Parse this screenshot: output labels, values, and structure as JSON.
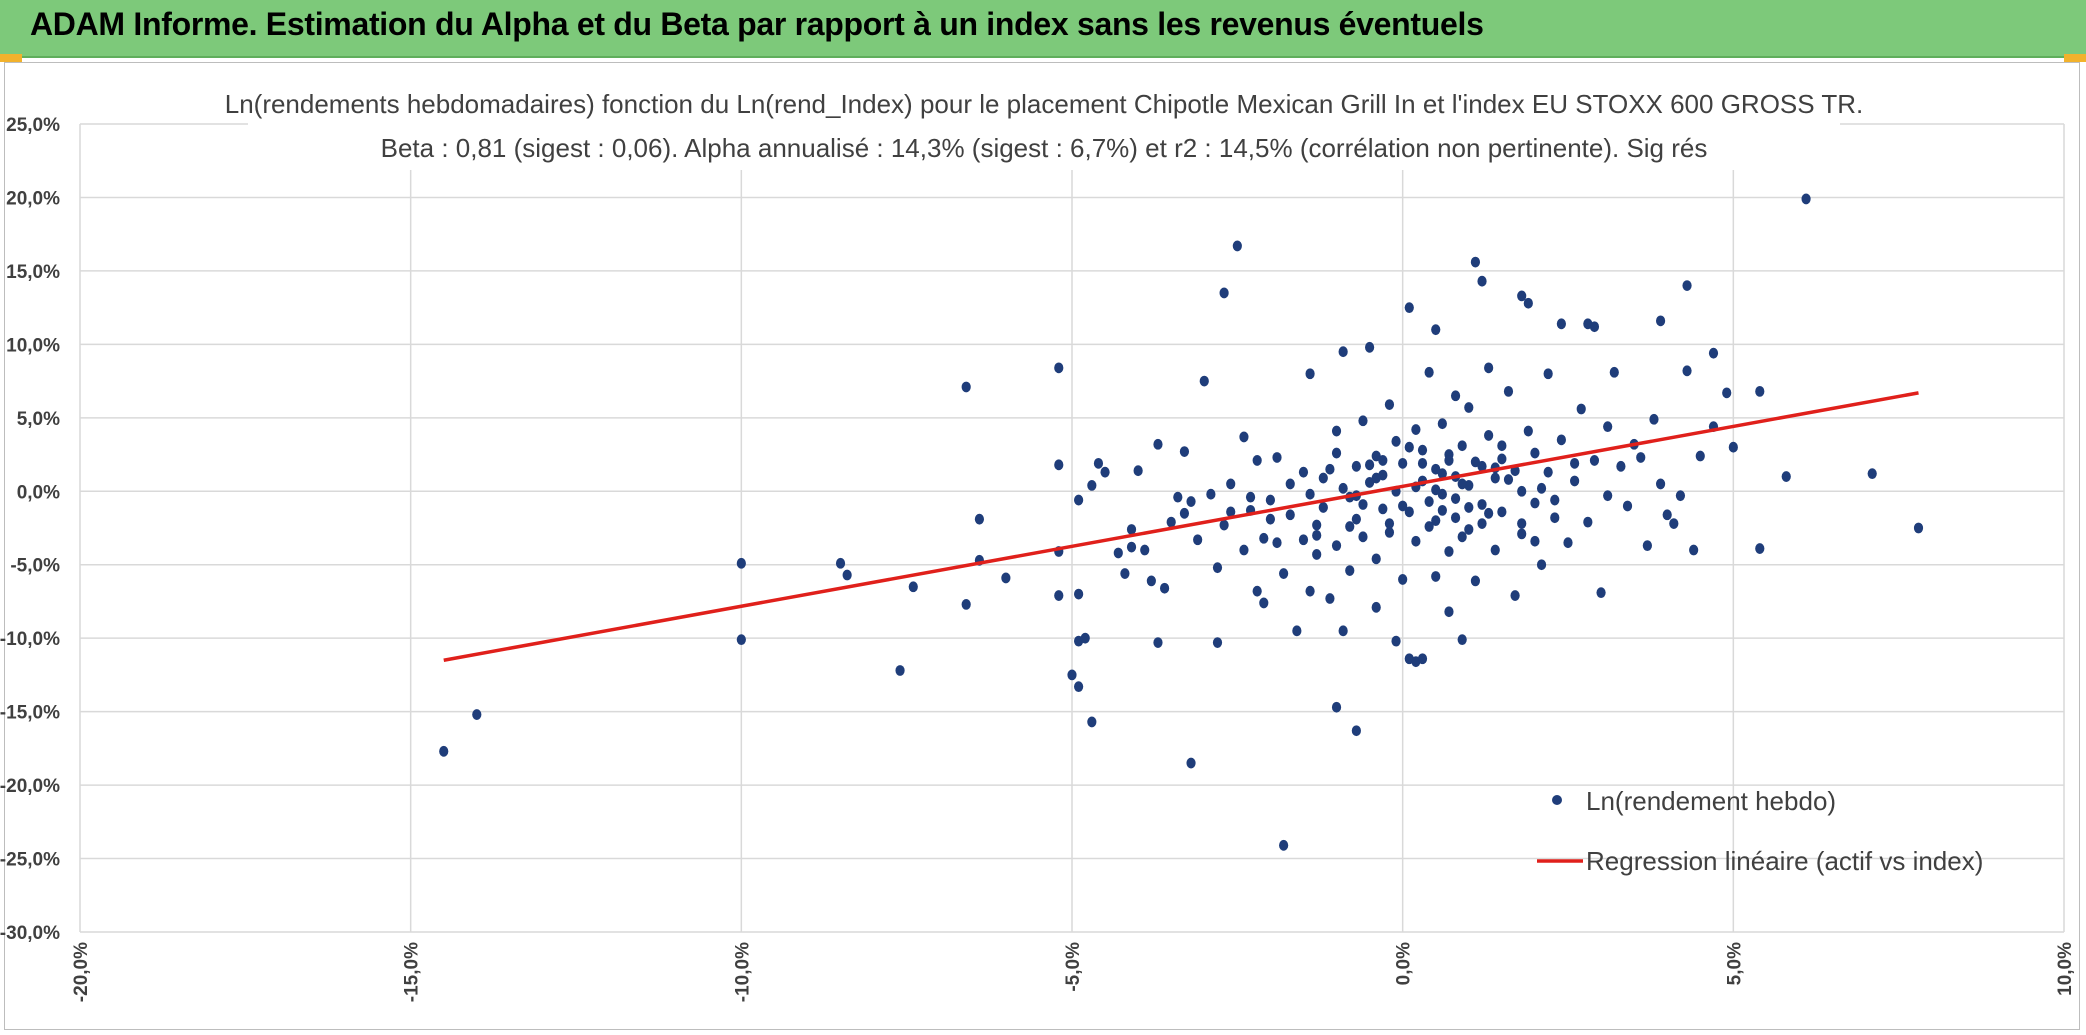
{
  "header": {
    "title": "ADAM Informe. Estimation du Alpha et du Beta par rapport à un index sans les revenus éventuels",
    "background": "#7dc97a"
  },
  "chart_data": {
    "type": "scatter",
    "title": "Ln(rendements hebdomadaires) fonction du Ln(rend_Index) pour le placement Chipotle Mexican Grill In et l'index EU STOXX 600 GROSS TR.",
    "subtitle": "Beta : 0,81 (sigest : 0,06). Alpha annualisé : 14,3% (sigest : 6,7%) et r2 : 14,5% (corrélation non pertinente). Sig rés",
    "xlim": [
      -20,
      10
    ],
    "ylim": [
      -30,
      25
    ],
    "x_ticks": [
      -20,
      -15,
      -10,
      -5,
      0,
      5,
      10
    ],
    "y_ticks": [
      25,
      20,
      15,
      10,
      5,
      0,
      -5,
      -10,
      -15,
      -20,
      -25,
      -30
    ],
    "x_tick_labels": [
      "-20,0%",
      "-15,0%",
      "-10,0%",
      "-5,0%",
      "0,0%",
      "5,0%",
      "10,0%"
    ],
    "y_tick_labels": [
      "25,0%",
      "20,0%",
      "15,0%",
      "10,0%",
      "5,0%",
      "0,0%",
      "-5,0%",
      "-10,0%",
      "-15,0%",
      "-20,0%",
      "-25,0%",
      "-30,0%"
    ],
    "grid": true,
    "legend_position": "bottom-right",
    "colors": {
      "points": "#1f3d7a",
      "regression": "#e0201b",
      "grid": "#d9d9d9"
    },
    "series": [
      {
        "name": "Ln(rendement hebdo)",
        "type": "scatter",
        "points": [
          [
            -14.5,
            -17.7
          ],
          [
            -14.0,
            -15.2
          ],
          [
            -10.0,
            -4.9
          ],
          [
            -10.0,
            -10.1
          ],
          [
            -8.5,
            -4.9
          ],
          [
            -8.4,
            -5.7
          ],
          [
            -7.6,
            -12.2
          ],
          [
            -7.4,
            -6.5
          ],
          [
            -6.6,
            7.1
          ],
          [
            -6.6,
            -7.7
          ],
          [
            -6.4,
            -1.9
          ],
          [
            -6.4,
            -4.7
          ],
          [
            -6.0,
            -5.9
          ],
          [
            -5.2,
            8.4
          ],
          [
            -5.2,
            -4.1
          ],
          [
            -5.2,
            1.8
          ],
          [
            -5.2,
            -7.1
          ],
          [
            -4.9,
            -7.0
          ],
          [
            -4.9,
            -10.2
          ],
          [
            -4.9,
            -0.6
          ],
          [
            -4.8,
            -10.0
          ],
          [
            -5.0,
            -12.5
          ],
          [
            -4.9,
            -13.3
          ],
          [
            -4.7,
            -15.7
          ],
          [
            -4.7,
            0.4
          ],
          [
            -4.6,
            1.9
          ],
          [
            -4.5,
            1.3
          ],
          [
            -4.3,
            -4.2
          ],
          [
            -4.2,
            -5.6
          ],
          [
            -4.1,
            -2.6
          ],
          [
            -4.1,
            -3.8
          ],
          [
            -4.0,
            1.4
          ],
          [
            -3.9,
            -4.0
          ],
          [
            -3.8,
            -6.1
          ],
          [
            -3.7,
            -10.3
          ],
          [
            -3.7,
            3.2
          ],
          [
            -3.6,
            -6.6
          ],
          [
            -3.5,
            -2.1
          ],
          [
            -3.4,
            -0.4
          ],
          [
            -3.3,
            2.7
          ],
          [
            -3.3,
            -1.5
          ],
          [
            -3.2,
            -0.7
          ],
          [
            -3.1,
            -3.3
          ],
          [
            -3.2,
            -18.5
          ],
          [
            -3.0,
            7.5
          ],
          [
            -2.9,
            -0.2
          ],
          [
            -2.8,
            -10.3
          ],
          [
            -2.8,
            -5.2
          ],
          [
            -2.7,
            -2.3
          ],
          [
            -2.6,
            0.5
          ],
          [
            -2.7,
            13.5
          ],
          [
            -2.5,
            16.7
          ],
          [
            -2.4,
            3.7
          ],
          [
            -2.4,
            -4.0
          ],
          [
            -2.3,
            -1.3
          ],
          [
            -2.2,
            2.1
          ],
          [
            -2.2,
            -6.8
          ],
          [
            -2.1,
            -3.2
          ],
          [
            -2.1,
            -7.6
          ],
          [
            -2.0,
            -0.6
          ],
          [
            -1.9,
            -3.5
          ],
          [
            -1.9,
            2.3
          ],
          [
            -1.8,
            -24.1
          ],
          [
            -1.8,
            -5.6
          ],
          [
            -1.7,
            -1.6
          ],
          [
            -1.6,
            -9.5
          ],
          [
            -1.5,
            -3.3
          ],
          [
            -1.5,
            1.3
          ],
          [
            -1.4,
            8.0
          ],
          [
            -1.4,
            -6.8
          ],
          [
            -1.3,
            -2.3
          ],
          [
            -1.3,
            -4.3
          ],
          [
            -1.2,
            0.9
          ],
          [
            -1.2,
            -1.1
          ],
          [
            -1.1,
            -7.3
          ],
          [
            -1.0,
            4.1
          ],
          [
            -1.0,
            -3.7
          ],
          [
            -1.0,
            -14.7
          ],
          [
            -0.9,
            -9.5
          ],
          [
            -0.9,
            9.5
          ],
          [
            -0.8,
            -0.4
          ],
          [
            -0.8,
            -5.4
          ],
          [
            -0.7,
            -16.3
          ],
          [
            -0.7,
            1.7
          ],
          [
            -0.7,
            -1.9
          ],
          [
            -0.6,
            4.8
          ],
          [
            -0.6,
            -3.1
          ],
          [
            -0.5,
            9.8
          ],
          [
            -0.5,
            0.6
          ],
          [
            -0.4,
            -7.9
          ],
          [
            -0.4,
            2.4
          ],
          [
            -0.4,
            -4.6
          ],
          [
            -0.3,
            -1.2
          ],
          [
            -0.3,
            1.1
          ],
          [
            -0.2,
            5.9
          ],
          [
            -0.2,
            -2.8
          ],
          [
            -0.1,
            -10.2
          ],
          [
            -0.1,
            0.0
          ],
          [
            -0.1,
            3.4
          ],
          [
            0.0,
            -6.0
          ],
          [
            0.0,
            1.9
          ],
          [
            0.1,
            -1.4
          ],
          [
            0.1,
            12.5
          ],
          [
            0.1,
            -11.4
          ],
          [
            0.2,
            -11.6
          ],
          [
            0.2,
            4.2
          ],
          [
            0.2,
            -3.4
          ],
          [
            0.3,
            0.7
          ],
          [
            0.3,
            2.8
          ],
          [
            0.3,
            -11.4
          ],
          [
            0.4,
            -0.7
          ],
          [
            0.4,
            8.1
          ],
          [
            0.5,
            -2.0
          ],
          [
            0.5,
            1.5
          ],
          [
            0.5,
            11.0
          ],
          [
            0.5,
            -5.8
          ],
          [
            0.6,
            4.6
          ],
          [
            0.6,
            -0.2
          ],
          [
            0.7,
            2.5
          ],
          [
            0.7,
            -4.1
          ],
          [
            0.7,
            -8.2
          ],
          [
            0.8,
            1.0
          ],
          [
            0.8,
            -1.8
          ],
          [
            0.8,
            6.5
          ],
          [
            0.9,
            -3.1
          ],
          [
            0.9,
            3.1
          ],
          [
            0.9,
            -10.1
          ],
          [
            1.0,
            0.4
          ],
          [
            1.0,
            -2.6
          ],
          [
            1.0,
            5.7
          ],
          [
            1.1,
            15.6
          ],
          [
            1.1,
            -6.1
          ],
          [
            1.2,
            1.7
          ],
          [
            1.2,
            14.3
          ],
          [
            1.2,
            -0.9
          ],
          [
            1.3,
            3.8
          ],
          [
            1.3,
            8.4
          ],
          [
            1.4,
            -4.0
          ],
          [
            1.4,
            0.9
          ],
          [
            1.5,
            2.2
          ],
          [
            1.5,
            -1.4
          ],
          [
            1.6,
            6.8
          ],
          [
            1.7,
            -7.1
          ],
          [
            1.7,
            1.4
          ],
          [
            1.8,
            13.3
          ],
          [
            1.8,
            -2.9
          ],
          [
            1.9,
            12.8
          ],
          [
            1.9,
            4.1
          ],
          [
            2.0,
            -0.8
          ],
          [
            2.0,
            2.6
          ],
          [
            2.1,
            -5.0
          ],
          [
            2.2,
            1.3
          ],
          [
            2.2,
            8.0
          ],
          [
            2.3,
            -1.8
          ],
          [
            2.4,
            11.4
          ],
          [
            2.4,
            3.5
          ],
          [
            2.5,
            -3.5
          ],
          [
            2.6,
            0.7
          ],
          [
            2.7,
            5.6
          ],
          [
            2.8,
            11.4
          ],
          [
            2.8,
            -2.1
          ],
          [
            2.9,
            2.1
          ],
          [
            2.9,
            11.2
          ],
          [
            3.0,
            -6.9
          ],
          [
            3.1,
            -0.3
          ],
          [
            3.1,
            4.4
          ],
          [
            3.2,
            8.1
          ],
          [
            3.3,
            1.7
          ],
          [
            3.4,
            -1.0
          ],
          [
            3.5,
            3.2
          ],
          [
            3.6,
            2.3
          ],
          [
            3.7,
            -3.7
          ],
          [
            3.8,
            4.9
          ],
          [
            3.9,
            11.6
          ],
          [
            3.9,
            0.5
          ],
          [
            4.0,
            -1.6
          ],
          [
            4.1,
            -2.2
          ],
          [
            4.2,
            -0.3
          ],
          [
            4.3,
            8.2
          ],
          [
            4.3,
            14.0
          ],
          [
            4.4,
            -4.0
          ],
          [
            4.5,
            2.4
          ],
          [
            4.7,
            9.4
          ],
          [
            4.7,
            4.4
          ],
          [
            4.9,
            6.7
          ],
          [
            5.0,
            3.0
          ],
          [
            5.4,
            -3.9
          ],
          [
            5.4,
            6.8
          ],
          [
            5.8,
            1.0
          ],
          [
            6.1,
            19.9
          ],
          [
            7.1,
            1.2
          ],
          [
            7.8,
            -2.5
          ],
          [
            -0.9,
            0.2
          ],
          [
            -0.6,
            -0.9
          ],
          [
            -0.3,
            2.1
          ],
          [
            0.2,
            0.3
          ],
          [
            0.4,
            -2.4
          ],
          [
            0.6,
            1.2
          ],
          [
            0.8,
            -0.5
          ],
          [
            1.1,
            2.0
          ],
          [
            1.3,
            -1.5
          ],
          [
            1.6,
            0.8
          ],
          [
            1.8,
            -2.2
          ],
          [
            2.1,
            0.2
          ],
          [
            2.3,
            -0.6
          ],
          [
            2.6,
            1.9
          ],
          [
            -1.1,
            1.5
          ],
          [
            -1.4,
            -0.2
          ],
          [
            -1.7,
            0.5
          ],
          [
            -2.0,
            -1.9
          ],
          [
            -2.3,
            -0.4
          ],
          [
            -2.6,
            -1.4
          ],
          [
            0.0,
            -1.0
          ],
          [
            0.3,
            1.9
          ],
          [
            0.6,
            -1.3
          ],
          [
            0.9,
            0.5
          ],
          [
            1.2,
            -2.2
          ],
          [
            1.5,
            3.1
          ],
          [
            1.8,
            0.0
          ],
          [
            2.0,
            -3.4
          ],
          [
            0.1,
            3.0
          ],
          [
            -0.2,
            -2.2
          ],
          [
            -0.5,
            1.8
          ],
          [
            -0.8,
            -2.4
          ],
          [
            0.5,
            0.1
          ],
          [
            0.7,
            2.1
          ],
          [
            1.0,
            -1.1
          ],
          [
            1.4,
            1.6
          ],
          [
            -0.4,
            0.9
          ],
          [
            -0.7,
            -0.3
          ],
          [
            -1.0,
            2.6
          ],
          [
            -1.3,
            -3.0
          ]
        ]
      },
      {
        "name": "Regression linéaire (actif vs index)",
        "type": "line",
        "points": [
          [
            -14.5,
            -11.5
          ],
          [
            7.8,
            6.7
          ]
        ]
      }
    ]
  }
}
